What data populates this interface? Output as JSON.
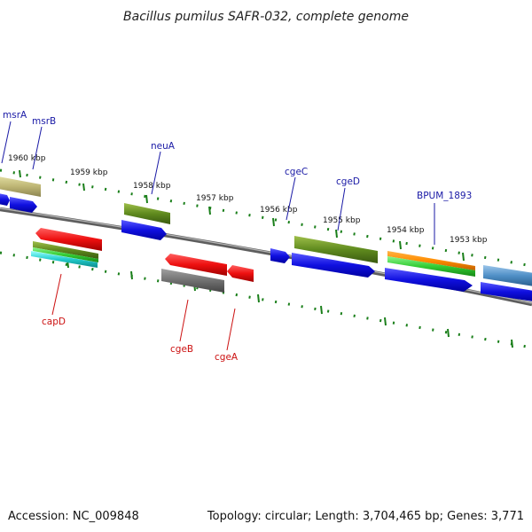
{
  "title": "Bacillus pumilus SAFR-032, complete genome",
  "footer": {
    "accession": "Accession: NC_009848",
    "topology": "Topology: circular; Length: 3,704,465 bp; Genes: 3,771"
  },
  "colors": {
    "backbone": "#7a7a7a",
    "tick": "#1a7f1a",
    "label_forward": "#1a1aa6",
    "label_reverse": "#cc1111",
    "leader_forward": "#1a1aa6",
    "leader_reverse": "#cc1111"
  },
  "ticks": [
    {
      "label": "1960 kbp"
    },
    {
      "label": "1959 kbp"
    },
    {
      "label": "1958 kbp"
    },
    {
      "label": "1957 kbp"
    },
    {
      "label": "1956 kbp"
    },
    {
      "label": "1955 kbp"
    },
    {
      "label": "1954 kbp"
    },
    {
      "label": "1953 kbp"
    }
  ],
  "genes_forward_labels": [
    {
      "name": "msrA"
    },
    {
      "name": "msrB"
    },
    {
      "name": "neuA"
    },
    {
      "name": "cgeC"
    },
    {
      "name": "cgeD"
    },
    {
      "name": "BPUM_1893"
    }
  ],
  "genes_reverse_labels": [
    {
      "name": "capD"
    },
    {
      "name": "cgeB"
    },
    {
      "name": "cgeA"
    }
  ],
  "legend": {
    "forward_strand_color": "#2b2bd6",
    "reverse_strand_color": "#e02020"
  }
}
